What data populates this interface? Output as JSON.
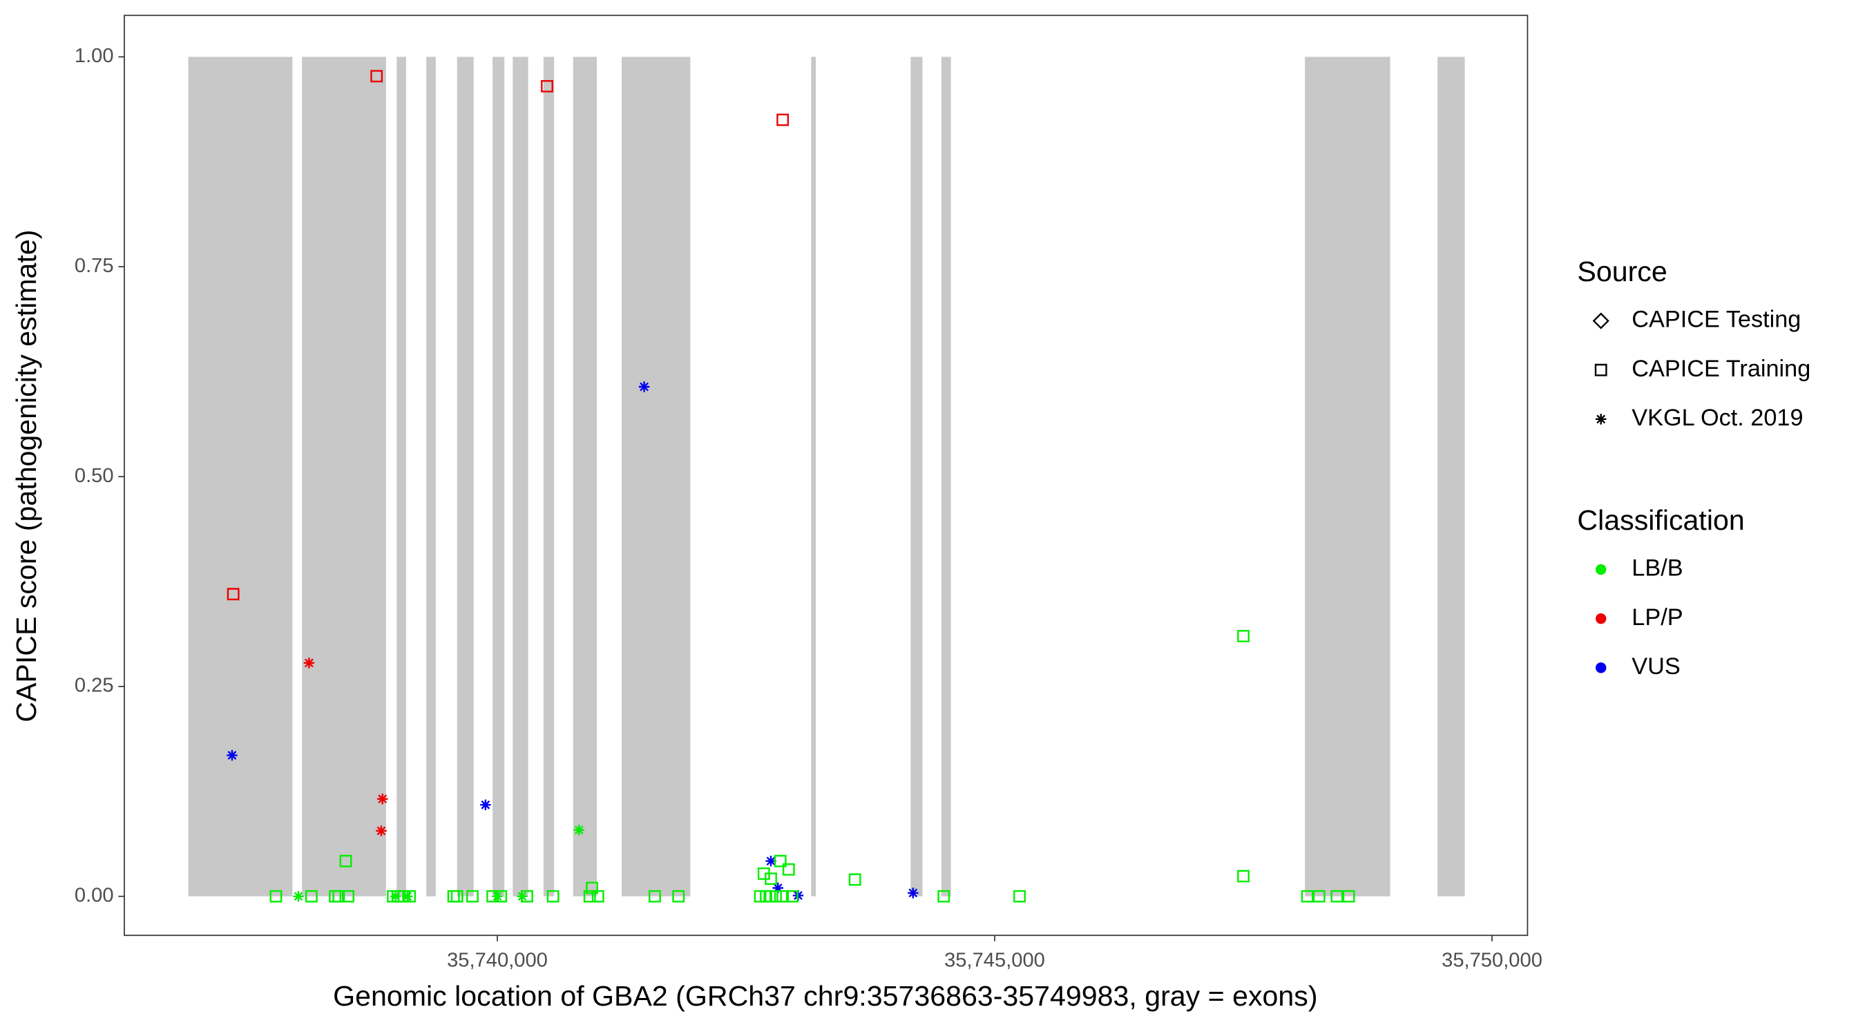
{
  "chart_data": {
    "type": "scatter",
    "xlabel": "Genomic location of GBA2 (GRCh37 chr9:35736863-35749983, gray = exons)",
    "ylabel": "CAPICE score (pathogenicity estimate)",
    "xlim": [
      35736250,
      35750357
    ],
    "ylim": [
      -0.0465,
      1.0494
    ],
    "xticks": [
      {
        "value": 35740000,
        "label": "35,740,000"
      },
      {
        "value": 35745000,
        "label": "35,745,000"
      },
      {
        "value": 35750000,
        "label": "35,750,000"
      }
    ],
    "yticks": [
      {
        "value": 0,
        "label": "0.00"
      },
      {
        "value": 0.25,
        "label": "0.25"
      },
      {
        "value": 0.5,
        "label": "0.50"
      },
      {
        "value": 0.75,
        "label": "0.75"
      },
      {
        "value": 1,
        "label": "1.00"
      }
    ],
    "grid": false,
    "exon_color": "#c8c8c8",
    "exon_ylim": [
      0,
      1
    ],
    "exons": [
      [
        35736893,
        35737940
      ],
      [
        35738036,
        35738881
      ],
      [
        35738988,
        35739083
      ],
      [
        35739286,
        35739381
      ],
      [
        35739595,
        35739762
      ],
      [
        35739952,
        35740071
      ],
      [
        35740155,
        35740310
      ],
      [
        35740464,
        35740571
      ],
      [
        35740762,
        35741000
      ],
      [
        35741250,
        35741940
      ],
      [
        35743155,
        35743202
      ],
      [
        35744155,
        35744274
      ],
      [
        35744464,
        35744560
      ],
      [
        35748119,
        35748976
      ],
      [
        35749452,
        35749726
      ]
    ],
    "legend": {
      "source": {
        "title": "Source",
        "items": [
          {
            "label": "CAPICE Testing",
            "shape": "diamond"
          },
          {
            "label": "CAPICE Training",
            "shape": "square"
          },
          {
            "label": "VKGL Oct. 2019",
            "shape": "asterisk"
          }
        ]
      },
      "classification": {
        "title": "Classification",
        "items": [
          {
            "label": "LB/B",
            "color": "#00ee00"
          },
          {
            "label": "LP/P",
            "color": "#ee0000"
          },
          {
            "label": "VUS",
            "color": "#0000ee"
          }
        ]
      }
    },
    "series": [
      {
        "source": "CAPICE Training",
        "classification": "LP/P",
        "x": [
          35738786,
          35740500,
          35742869,
          35737345
        ],
        "y": [
          0.977,
          0.965,
          0.925,
          0.36
        ]
      },
      {
        "source": "VKGL Oct. 2019",
        "classification": "LP/P",
        "x": [
          35738107,
          35738845,
          35738833
        ],
        "y": [
          0.278,
          0.116,
          0.078
        ]
      },
      {
        "source": "VKGL Oct. 2019",
        "classification": "VUS",
        "x": [
          35737333,
          35741476,
          35739881,
          35742750,
          35742821,
          35743024,
          35744179
        ],
        "y": [
          0.168,
          0.607,
          0.109,
          0.042,
          0.01,
          0.001,
          0.004
        ]
      },
      {
        "source": "VKGL Oct. 2019",
        "classification": "LB/B",
        "x": [
          35740821,
          35738000,
          35738976,
          35739095,
          35740000,
          35740250
        ],
        "y": [
          0.079,
          0,
          0,
          0,
          0,
          0
        ]
      },
      {
        "source": "CAPICE Training",
        "classification": "LB/B",
        "x": [
          35737774,
          35738131,
          35738369,
          35738405,
          35738500,
          35738952,
          35739000,
          35739060,
          35739119,
          35739560,
          35739595,
          35739750,
          35739952,
          35740036,
          35740298,
          35740560,
          35740929,
          35741012,
          35741583,
          35741821,
          35742643,
          35742702,
          35742738,
          35742798,
          35742869,
          35742964,
          35744488,
          35745250,
          35748143,
          35748262,
          35748440,
          35748560,
          35738476,
          35740952,
          35742679,
          35742750,
          35742845,
          35742929,
          35743595,
          35747500,
          35747500
        ],
        "y": [
          0,
          0,
          0,
          0,
          0,
          0,
          0,
          0,
          0,
          0,
          0,
          0,
          0,
          0,
          0,
          0,
          0,
          0,
          0,
          0,
          0,
          0,
          0,
          0,
          0,
          0,
          0,
          0,
          0,
          0,
          0,
          0,
          0.042,
          0.01,
          0.027,
          0.021,
          0.042,
          0.032,
          0.02,
          0.31,
          0.024
        ]
      }
    ]
  }
}
